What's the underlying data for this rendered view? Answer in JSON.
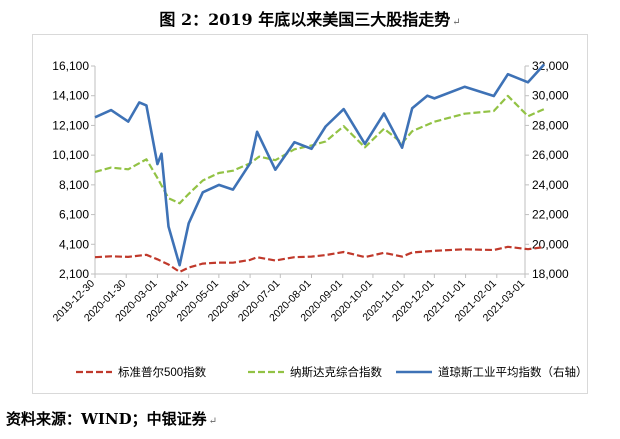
{
  "title": "图 2：2019 年底以来美国三大股指走势",
  "source": "资料来源：WIND；中银证券",
  "paragraph_mark": "↵",
  "chart_data": {
    "type": "line",
    "x_ticks": [
      "2019-12-30",
      "2020-01-30",
      "2020-03-01",
      "2020-04-01",
      "2020-05-01",
      "2020-06-01",
      "2020-07-01",
      "2020-08-01",
      "2020-09-01",
      "2020-10-01",
      "2020-11-01",
      "2020-12-01",
      "2021-01-01",
      "2021-02-01",
      "2021-03-01"
    ],
    "y_left": {
      "min": 2100,
      "max": 16100,
      "ticks": [
        2100,
        4100,
        6100,
        8100,
        10100,
        12100,
        14100,
        16100
      ]
    },
    "y_right": {
      "min": 18000,
      "max": 32000,
      "ticks": [
        18000,
        20000,
        22000,
        24000,
        26000,
        28000,
        30000,
        32000
      ]
    },
    "legend_position": "bottom",
    "grid": false,
    "series": [
      {
        "name": "标准普尔500指数",
        "axis": "left",
        "color": "#c0392b",
        "style": "dashed",
        "x": [
          "2019-12-30",
          "2020-01-15",
          "2020-02-01",
          "2020-02-19",
          "2020-03-01",
          "2020-03-12",
          "2020-03-23",
          "2020-04-01",
          "2020-04-15",
          "2020-05-01",
          "2020-05-15",
          "2020-06-01",
          "2020-06-08",
          "2020-06-26",
          "2020-07-15",
          "2020-08-01",
          "2020-08-15",
          "2020-09-02",
          "2020-09-23",
          "2020-10-12",
          "2020-10-30",
          "2020-11-09",
          "2020-12-01",
          "2020-12-31",
          "2021-01-29",
          "2021-02-12",
          "2021-03-04",
          "2021-03-20"
        ],
        "y": [
          3230,
          3290,
          3250,
          3390,
          3090,
          2740,
          2240,
          2530,
          2800,
          2870,
          2860,
          3050,
          3230,
          3010,
          3230,
          3270,
          3370,
          3580,
          3240,
          3530,
          3270,
          3550,
          3660,
          3760,
          3715,
          3930,
          3770,
          3910
        ]
      },
      {
        "name": "纳斯达克综合指数",
        "axis": "left",
        "color": "#92c244",
        "style": "dashed",
        "x": [
          "2019-12-30",
          "2020-01-15",
          "2020-02-01",
          "2020-02-19",
          "2020-03-01",
          "2020-03-12",
          "2020-03-23",
          "2020-04-01",
          "2020-04-15",
          "2020-05-01",
          "2020-05-15",
          "2020-06-01",
          "2020-06-10",
          "2020-06-26",
          "2020-07-15",
          "2020-08-01",
          "2020-08-15",
          "2020-09-02",
          "2020-09-23",
          "2020-10-12",
          "2020-10-30",
          "2020-11-09",
          "2020-12-01",
          "2020-12-31",
          "2021-01-29",
          "2021-02-12",
          "2021-03-04",
          "2021-03-20"
        ],
        "y": [
          8970,
          9260,
          9150,
          9820,
          8570,
          7200,
          6860,
          7490,
          8390,
          8900,
          9050,
          9550,
          10000,
          9760,
          10490,
          10750,
          11020,
          12050,
          10630,
          11880,
          10910,
          11710,
          12350,
          12890,
          13070,
          14090,
          12720,
          13200
        ]
      },
      {
        "name": "道琼斯工业平均指数（右轴）",
        "axis": "right",
        "color": "#3e72b6",
        "style": "solid",
        "x": [
          "2019-12-30",
          "2020-01-15",
          "2020-02-01",
          "2020-02-12",
          "2020-02-19",
          "2020-03-01",
          "2020-03-05",
          "2020-03-12",
          "2020-03-23",
          "2020-04-01",
          "2020-04-15",
          "2020-05-01",
          "2020-05-15",
          "2020-06-01",
          "2020-06-08",
          "2020-06-26",
          "2020-07-15",
          "2020-08-01",
          "2020-08-15",
          "2020-09-02",
          "2020-09-23",
          "2020-10-12",
          "2020-10-30",
          "2020-11-09",
          "2020-11-24",
          "2020-12-01",
          "2020-12-31",
          "2021-01-29",
          "2021-02-12",
          "2021-03-04",
          "2021-03-20"
        ],
        "y": [
          28550,
          29030,
          28260,
          29550,
          29350,
          25400,
          26100,
          21200,
          18590,
          21410,
          23500,
          24000,
          23680,
          25450,
          27570,
          25020,
          26870,
          26430,
          27930,
          29100,
          26760,
          28800,
          26500,
          29160,
          30000,
          29820,
          30600,
          29980,
          31450,
          30900,
          32100
        ]
      }
    ]
  }
}
